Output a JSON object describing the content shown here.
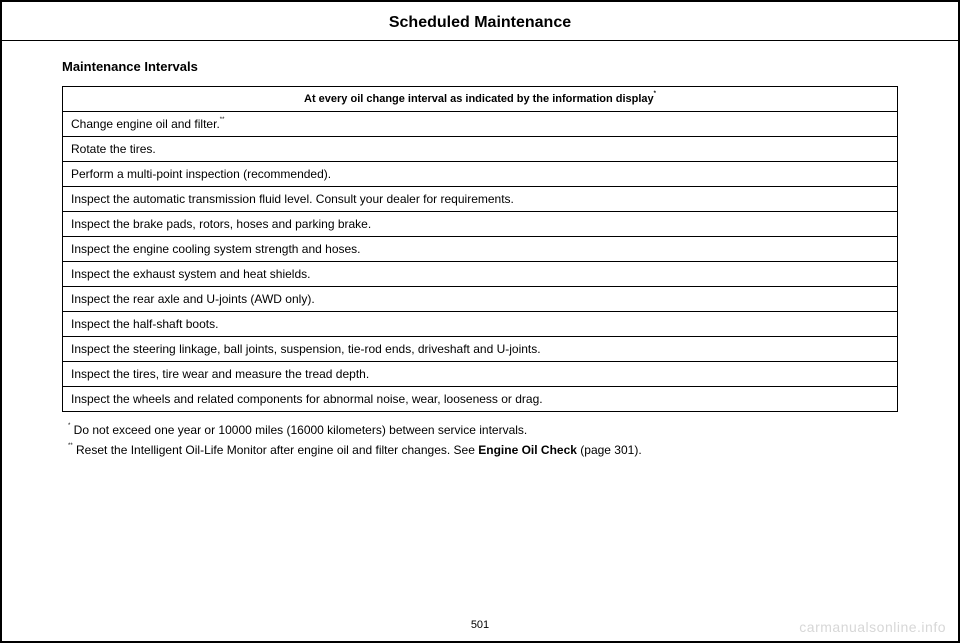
{
  "header": {
    "title": "Scheduled Maintenance"
  },
  "section": {
    "title": "Maintenance Intervals"
  },
  "table": {
    "header": "At every oil change interval as indicated by the information display",
    "header_ref": "*",
    "rows": [
      {
        "text": "Change engine oil and filter.",
        "ref": "**"
      },
      {
        "text": "Rotate the tires."
      },
      {
        "text": "Perform a multi-point inspection (recommended)."
      },
      {
        "text": "Inspect the automatic transmission fluid level. Consult your dealer for requirements."
      },
      {
        "text": "Inspect the brake pads, rotors, hoses and parking brake."
      },
      {
        "text": "Inspect the engine cooling system strength and hoses."
      },
      {
        "text": "Inspect the exhaust system and heat shields."
      },
      {
        "text": "Inspect the rear axle and U-joints (AWD only)."
      },
      {
        "text": "Inspect the half-shaft boots."
      },
      {
        "text": "Inspect the steering linkage, ball joints, suspension, tie-rod ends, driveshaft and U-joints."
      },
      {
        "text": "Inspect the tires, tire wear and measure the tread depth."
      },
      {
        "text": "Inspect the wheels and related components for abnormal noise, wear, looseness or drag."
      }
    ]
  },
  "footnotes": {
    "f1": {
      "ref": "*",
      "text": " Do not exceed one year or 10000 miles (16000 kilometers) between service intervals."
    },
    "f2": {
      "ref": "**",
      "pre": " Reset the Intelligent Oil-Life Monitor after engine oil and filter changes.  See ",
      "bold": "Engine Oil Check",
      "post": " (page 301)."
    }
  },
  "page_number": "501",
  "watermark": "carmanualsonline.info"
}
